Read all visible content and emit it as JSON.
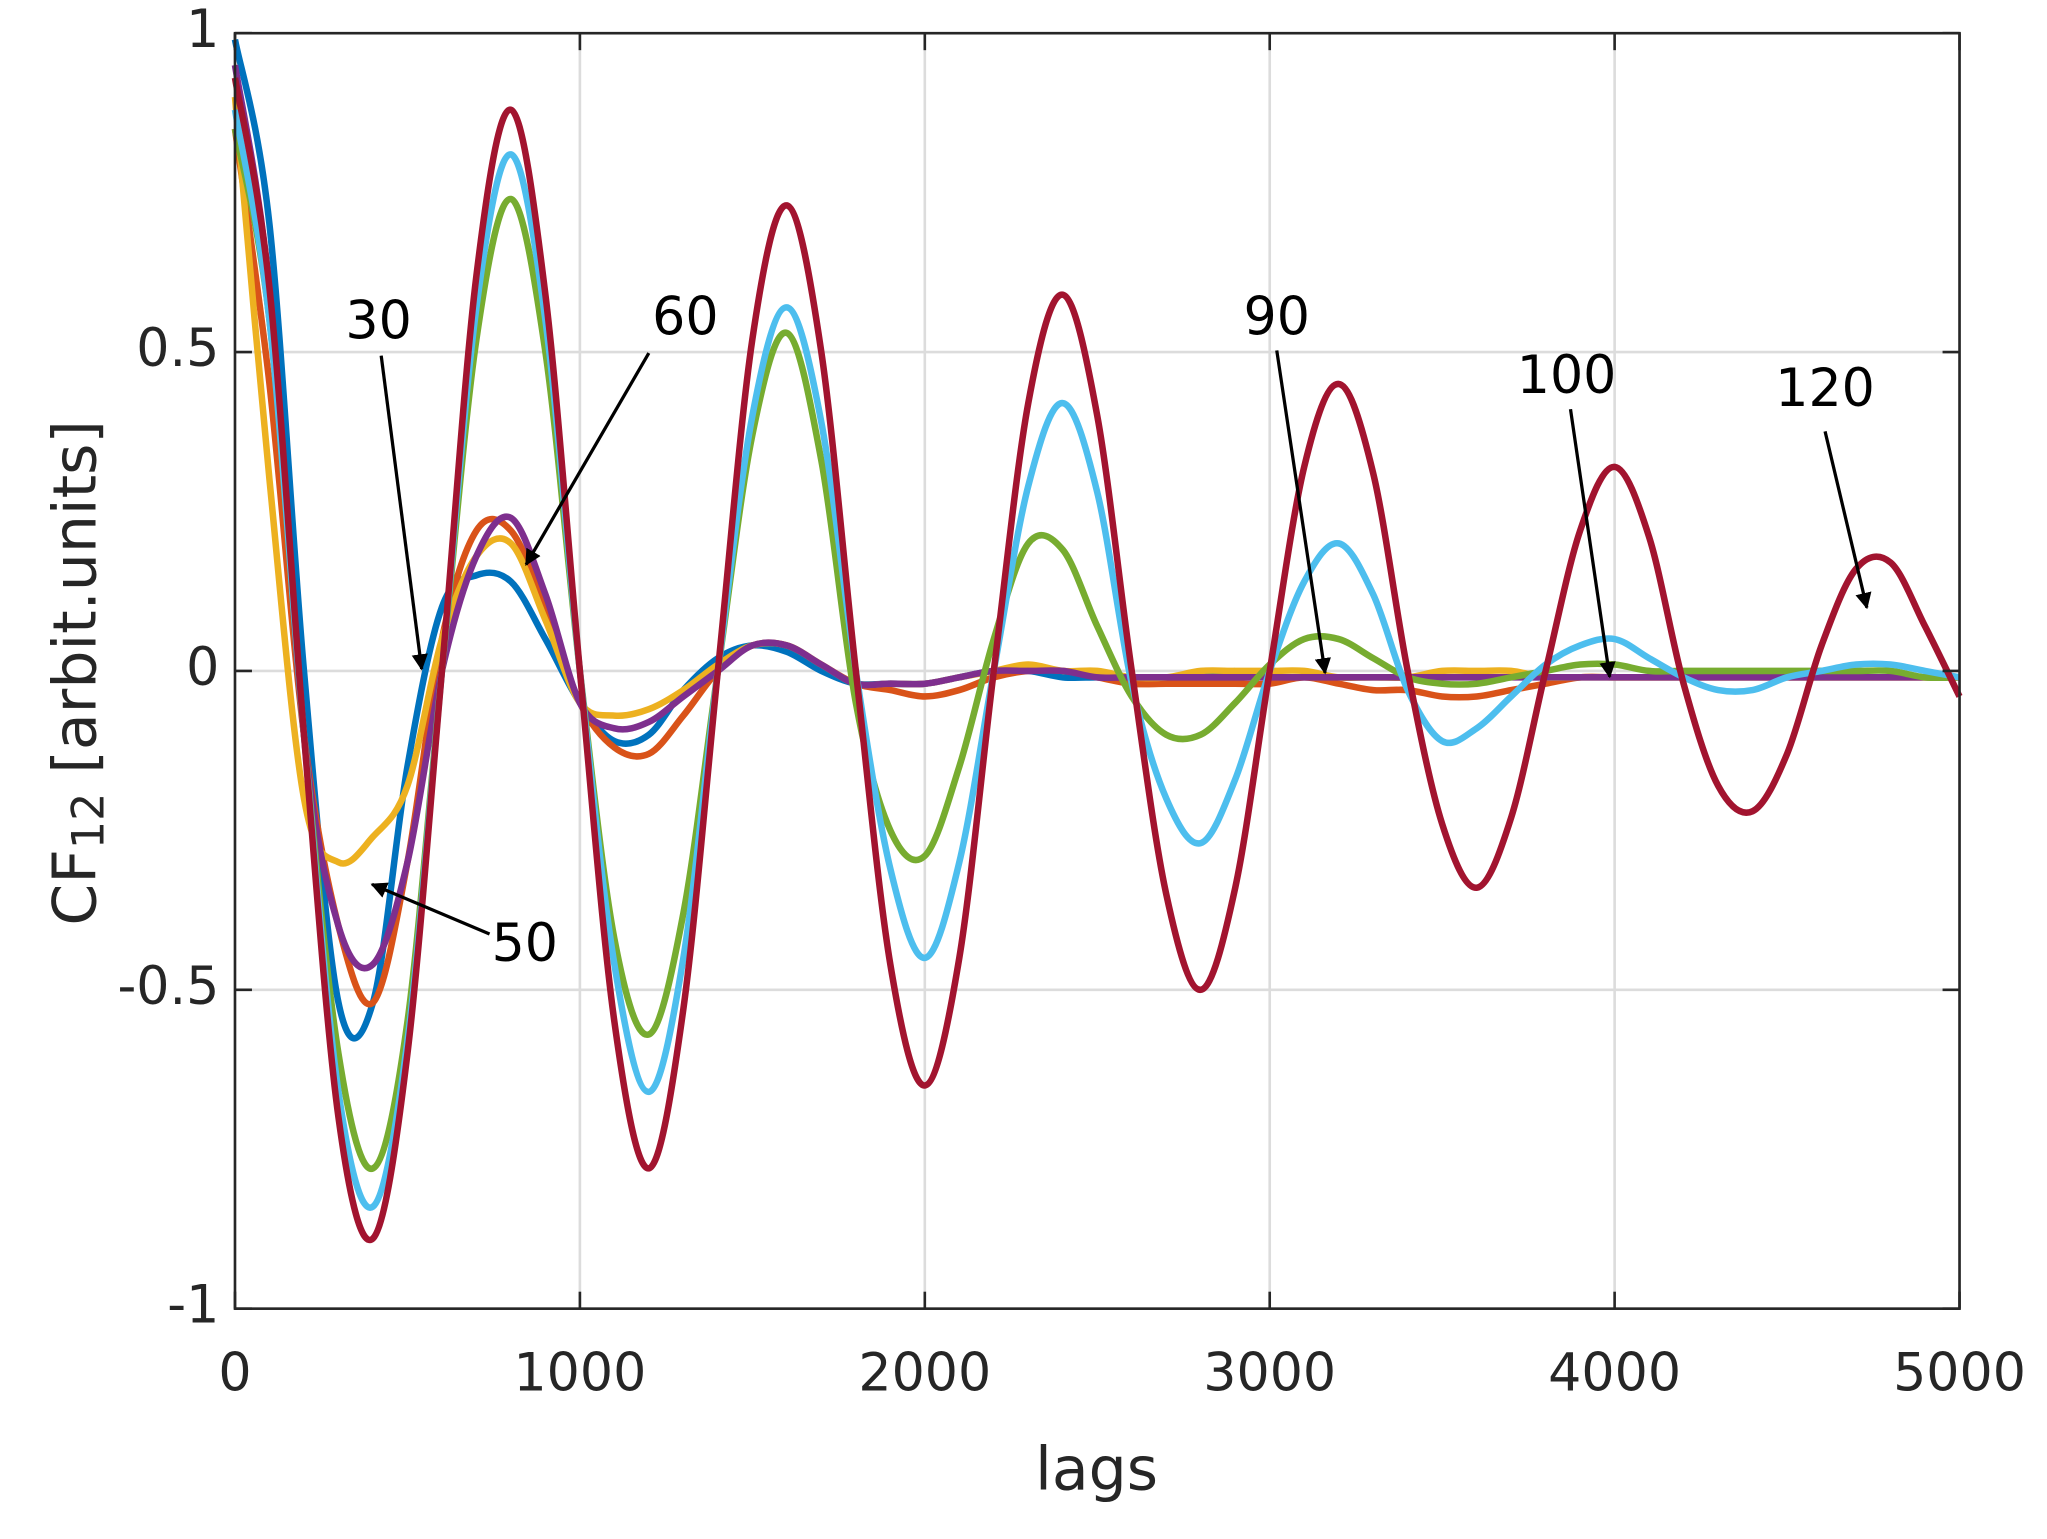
{
  "chart_data": {
    "type": "line",
    "xlabel": "lags",
    "ylabel_parts": [
      "CF",
      "12",
      " [arbit.units]"
    ],
    "x": [
      0,
      100,
      200,
      300,
      400,
      500,
      600,
      700,
      800,
      900,
      1000,
      1100,
      1200,
      1300,
      1400,
      1500,
      1600,
      1700,
      1800,
      1900,
      2000,
      2100,
      2200,
      2300,
      2400,
      2500,
      2600,
      2700,
      2800,
      2900,
      3000,
      3100,
      3200,
      3300,
      3400,
      3500,
      3600,
      3700,
      3800,
      3900,
      4000,
      4100,
      4200,
      4300,
      4400,
      4500,
      4600,
      4700,
      4800,
      4900,
      5000
    ],
    "series": [
      {
        "color": "#0072BD",
        "values": [
          0.99,
          0.7,
          0.0,
          -0.52,
          -0.52,
          -0.15,
          0.1,
          0.15,
          0.14,
          0.05,
          -0.05,
          -0.11,
          -0.1,
          -0.03,
          0.02,
          0.04,
          0.03,
          0.0,
          -0.02,
          -0.02,
          -0.02,
          -0.01,
          0.0,
          0.0,
          -0.01,
          -0.01,
          -0.01,
          -0.01,
          -0.01,
          0.0,
          null,
          null,
          null,
          null,
          null,
          null,
          null,
          null,
          null,
          null,
          null,
          null,
          null,
          null,
          null,
          null,
          null,
          null,
          null,
          null,
          null
        ]
      },
      {
        "color": "#D95319",
        "values": [
          0.85,
          0.45,
          -0.1,
          -0.4,
          -0.52,
          -0.3,
          0.05,
          0.22,
          0.22,
          0.1,
          -0.05,
          -0.12,
          -0.13,
          -0.07,
          0.0,
          0.04,
          0.04,
          0.01,
          -0.02,
          -0.03,
          -0.04,
          -0.03,
          -0.01,
          0.0,
          0.0,
          -0.01,
          -0.02,
          -0.02,
          -0.02,
          -0.02,
          -0.02,
          -0.01,
          -0.02,
          -0.03,
          -0.03,
          -0.04,
          -0.04,
          -0.03,
          -0.02,
          -0.01,
          -0.01,
          -0.01,
          -0.01,
          -0.01,
          -0.01,
          -0.01,
          -0.01,
          -0.01,
          -0.01,
          -0.01,
          -0.01
        ]
      },
      {
        "color": "#EDB120",
        "values": [
          0.9,
          0.3,
          -0.2,
          -0.3,
          -0.26,
          -0.18,
          0.05,
          0.18,
          0.2,
          0.08,
          -0.05,
          -0.07,
          -0.06,
          -0.03,
          0.01,
          0.04,
          0.04,
          0.01,
          -0.02,
          -0.02,
          -0.02,
          -0.01,
          0.0,
          0.01,
          0.0,
          0.0,
          -0.01,
          -0.01,
          0.0,
          0.0,
          0.0,
          0.0,
          -0.01,
          -0.01,
          -0.01,
          0.0,
          0.0,
          0.0,
          -0.01,
          -0.01,
          -0.01,
          -0.01,
          -0.01,
          -0.01,
          -0.01,
          -0.01,
          -0.01,
          -0.01,
          -0.01,
          -0.01,
          -0.01
        ]
      },
      {
        "color": "#7E2F8E",
        "values": [
          0.95,
          0.6,
          -0.1,
          -0.4,
          -0.46,
          -0.3,
          0.0,
          0.18,
          0.24,
          0.12,
          -0.05,
          -0.09,
          -0.08,
          -0.04,
          0.0,
          0.04,
          0.04,
          0.01,
          -0.02,
          -0.02,
          -0.02,
          -0.01,
          0.0,
          0.0,
          0.0,
          -0.01,
          -0.01,
          -0.01,
          -0.01,
          -0.01,
          -0.01,
          -0.01,
          -0.01,
          -0.01,
          -0.01,
          -0.01,
          -0.01,
          -0.01,
          -0.01,
          -0.01,
          -0.01,
          -0.01,
          -0.01,
          -0.01,
          -0.01,
          -0.01,
          -0.01,
          -0.01,
          -0.01,
          -0.01,
          -0.01
        ]
      },
      {
        "color": "#77AC30",
        "values": [
          0.85,
          0.55,
          -0.1,
          -0.6,
          -0.78,
          -0.55,
          0.0,
          0.52,
          0.74,
          0.5,
          0.0,
          -0.42,
          -0.57,
          -0.38,
          0.0,
          0.37,
          0.53,
          0.33,
          -0.05,
          -0.25,
          -0.29,
          -0.15,
          0.05,
          0.2,
          0.19,
          0.07,
          -0.04,
          -0.1,
          -0.1,
          -0.05,
          0.01,
          0.05,
          0.05,
          0.02,
          -0.01,
          -0.02,
          -0.02,
          -0.01,
          0.0,
          0.01,
          0.01,
          0.0,
          0.0,
          0.0,
          0.0,
          0.0,
          0.0,
          0.0,
          0.0,
          -0.01,
          -0.01
        ]
      },
      {
        "color": "#4DBEEE",
        "values": [
          0.88,
          0.55,
          -0.1,
          -0.66,
          -0.84,
          -0.58,
          0.0,
          0.57,
          0.81,
          0.55,
          0.0,
          -0.46,
          -0.66,
          -0.45,
          0.0,
          0.4,
          0.57,
          0.39,
          0.0,
          -0.31,
          -0.45,
          -0.3,
          0.0,
          0.29,
          0.42,
          0.28,
          -0.02,
          -0.2,
          -0.27,
          -0.17,
          0.0,
          0.14,
          0.2,
          0.12,
          -0.03,
          -0.11,
          -0.09,
          -0.04,
          0.01,
          0.04,
          0.05,
          0.02,
          -0.01,
          -0.03,
          -0.03,
          -0.01,
          0.0,
          0.01,
          0.01,
          0.0,
          -0.01
        ]
      },
      {
        "color": "#A2142F",
        "values": [
          0.93,
          0.6,
          -0.1,
          -0.7,
          -0.89,
          -0.6,
          0.0,
          0.62,
          0.88,
          0.59,
          0.0,
          -0.55,
          -0.78,
          -0.53,
          0.0,
          0.52,
          0.73,
          0.5,
          0.0,
          -0.46,
          -0.65,
          -0.45,
          0.0,
          0.42,
          0.59,
          0.4,
          0.0,
          -0.35,
          -0.5,
          -0.34,
          0.0,
          0.32,
          0.45,
          0.31,
          0.0,
          -0.24,
          -0.34,
          -0.23,
          0.0,
          0.22,
          0.32,
          0.21,
          -0.02,
          -0.18,
          -0.22,
          -0.13,
          0.04,
          0.16,
          0.17,
          0.07,
          -0.04
        ]
      }
    ],
    "annotations": [
      "30",
      "60",
      "50",
      "90",
      "100",
      "120"
    ],
    "xlim": [
      0,
      5000
    ],
    "xticks": [
      0,
      1000,
      2000,
      3000,
      4000,
      5000
    ],
    "ylim": [
      -1,
      1
    ],
    "yticks": [
      -1,
      -0.5,
      0,
      0.5,
      1
    ],
    "grid": true
  }
}
